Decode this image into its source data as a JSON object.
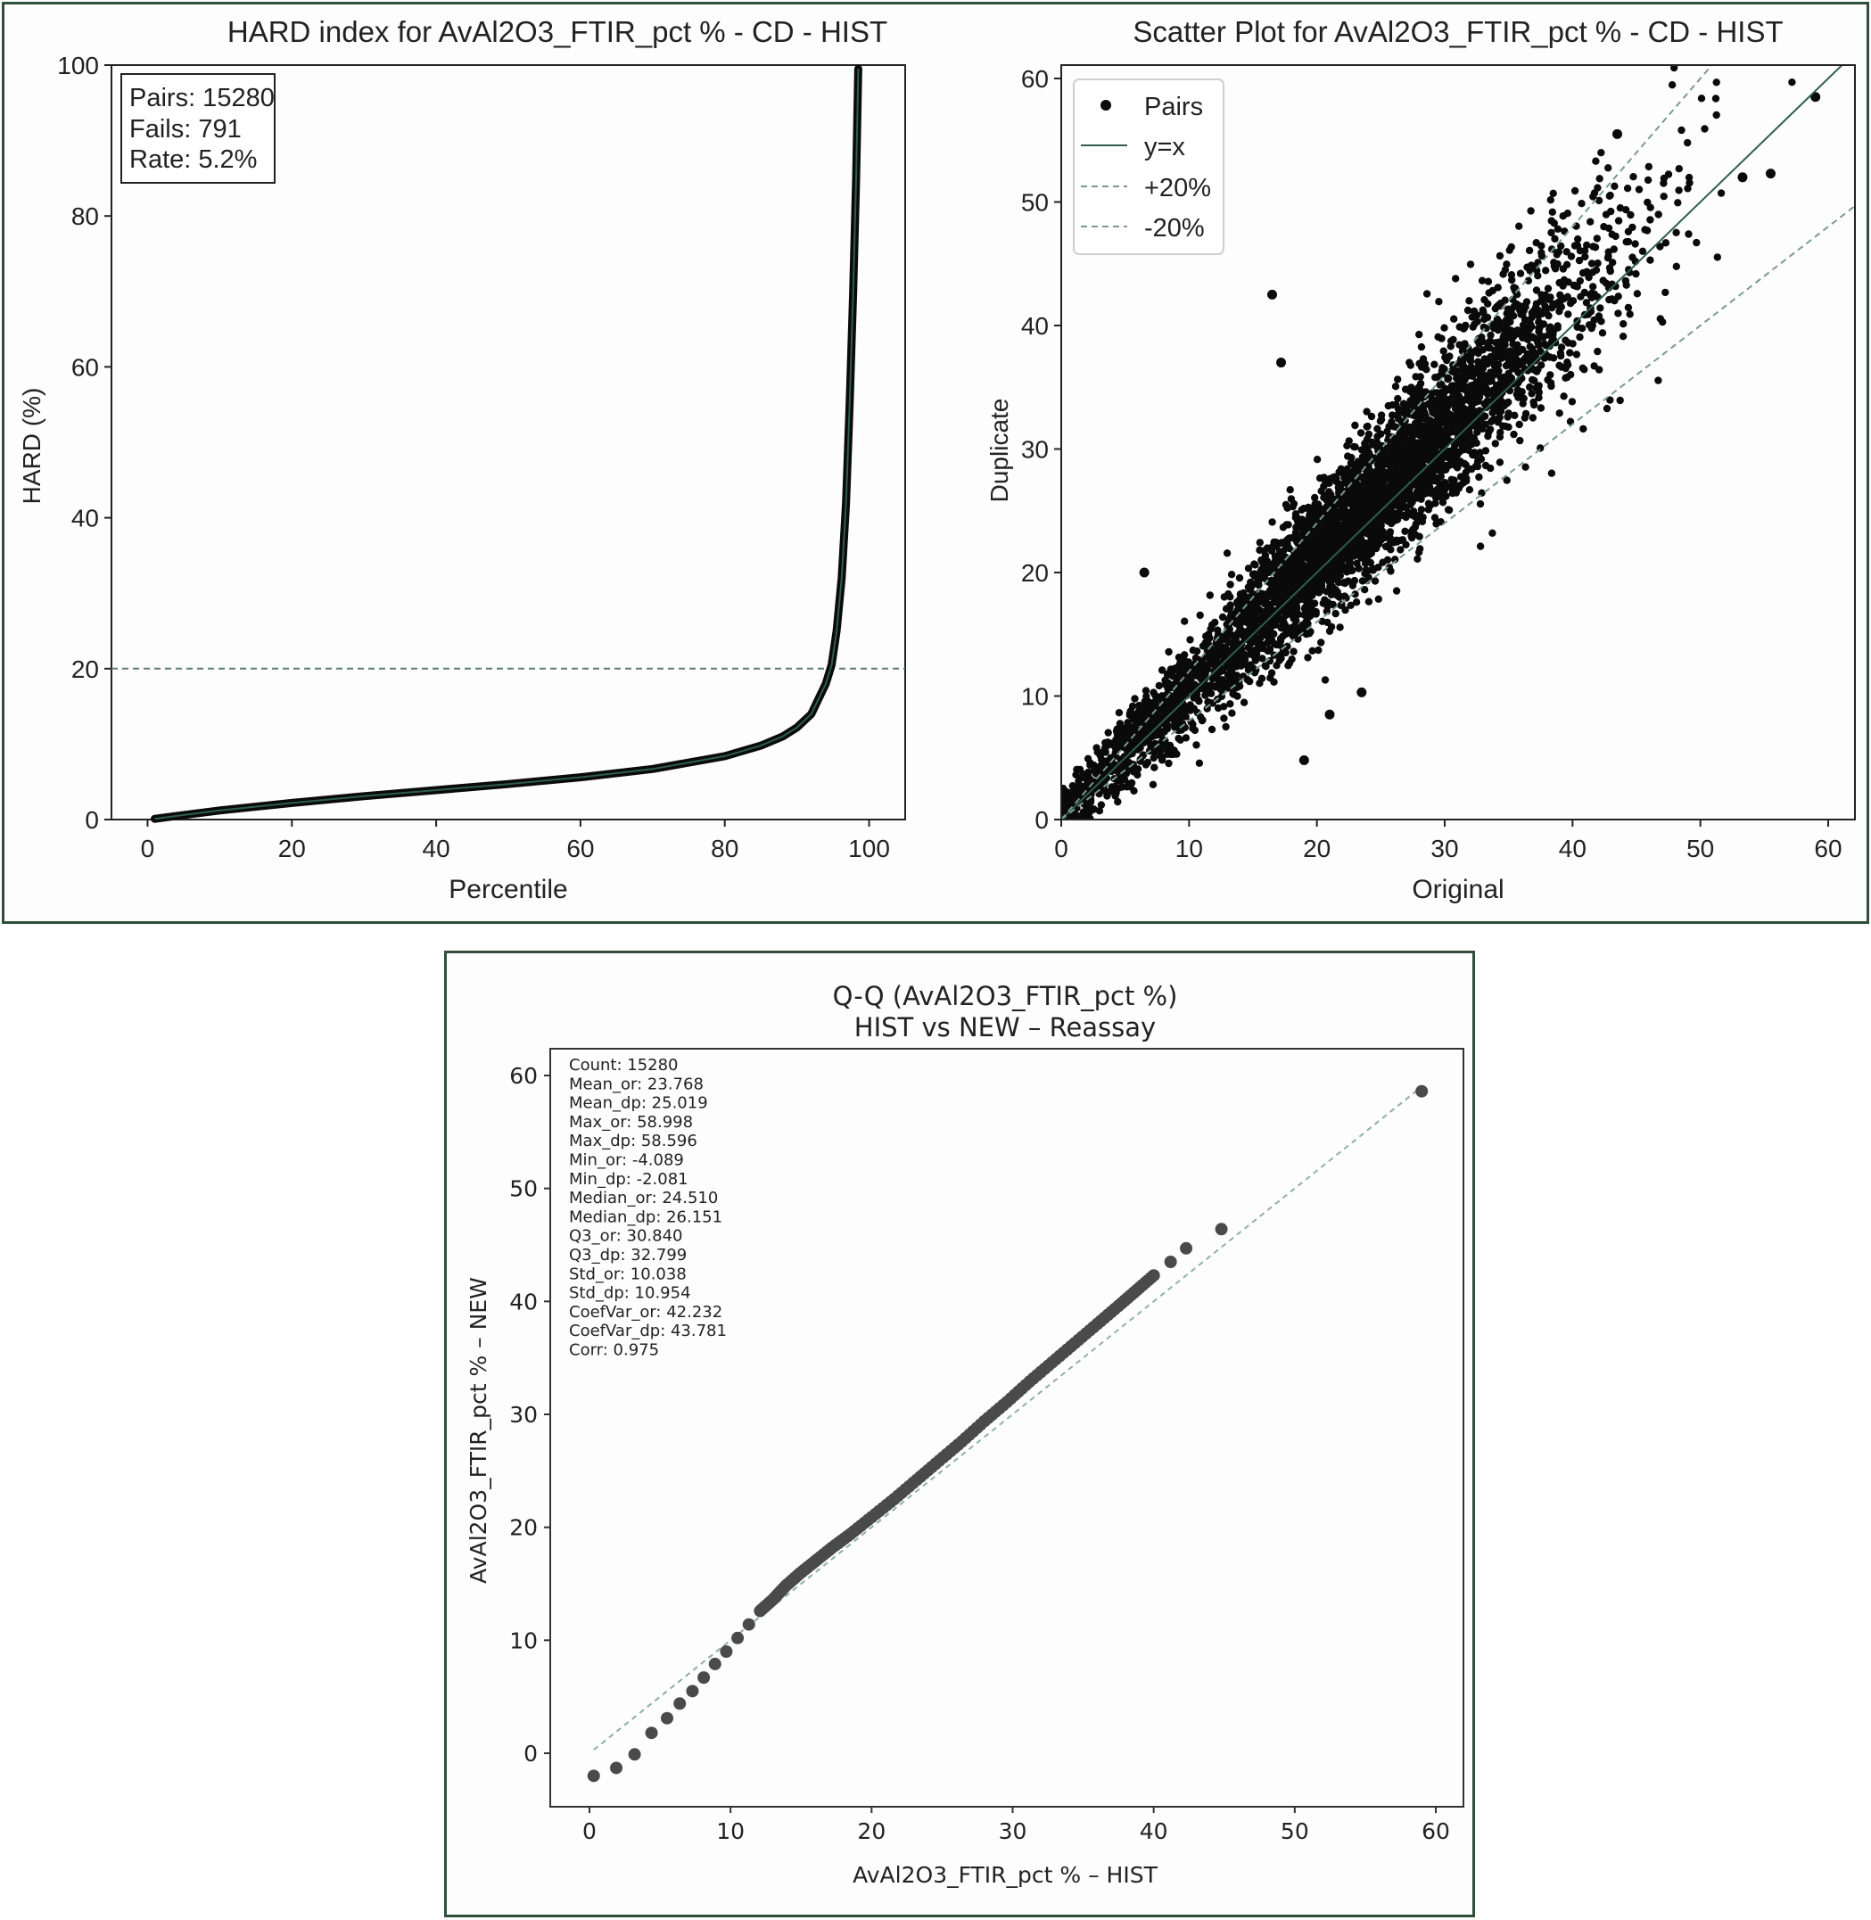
{
  "charts": {
    "hard": {
      "title": "HARD index for AvAl2O3_FTIR_pct % - CD - HIST",
      "xlabel": "Percentile",
      "ylabel": "HARD (%)",
      "box": [
        "Pairs: 15280",
        "Fails: 791",
        "Rate: 5.2%"
      ],
      "xticks": [
        0,
        20,
        40,
        60,
        80,
        100
      ],
      "yticks": [
        0,
        20,
        40,
        60,
        80,
        100
      ],
      "threshold": 20
    },
    "scatter": {
      "title": "Scatter Plot for AvAl2O3_FTIR_pct % - CD - HIST",
      "xlabel": "Original",
      "ylabel": "Duplicate",
      "legend": [
        "Pairs",
        "y=x",
        "+20%",
        "-20%"
      ],
      "xticks": [
        0,
        10,
        20,
        30,
        40,
        50,
        60
      ],
      "yticks": [
        0,
        10,
        20,
        30,
        40,
        50,
        60
      ]
    },
    "qq": {
      "title_line1": "Q-Q (AvAl2O3_FTIR_pct %)",
      "title_line2": "HIST vs NEW – Reassay",
      "xlabel": "AvAl2O3_FTIR_pct % – HIST",
      "ylabel": "AvAl2O3_FTIR_pct % – NEW",
      "stats": [
        "Count: 15280",
        "Mean_or: 23.768",
        "Mean_dp: 25.019",
        "Max_or: 58.998",
        "Max_dp: 58.596",
        "Min_or: -4.089",
        "Min_dp: -2.081",
        "Median_or: 24.510",
        "Median_dp: 26.151",
        "Q3_or: 30.840",
        "Q3_dp: 32.799",
        "Std_or: 10.038",
        "Std_dp: 10.954",
        "CoefVar_or: 42.232",
        "CoefVar_dp: 43.781",
        "Corr: 0.975"
      ],
      "xticks": [
        0,
        10,
        20,
        30,
        40,
        50,
        60
      ],
      "yticks": [
        0,
        10,
        20,
        30,
        40,
        50,
        60
      ]
    }
  },
  "colors": {
    "points": "#0a0a0a",
    "curve_line": "#2f5d4f",
    "dashed": "#7a9a8c",
    "qq_points": "#4a4a4a"
  },
  "chart_data": [
    {
      "type": "line",
      "title": "HARD index for AvAl2O3_FTIR_pct % - CD - HIST",
      "xlabel": "Percentile",
      "ylabel": "HARD (%)",
      "xlim": [
        -5,
        105
      ],
      "ylim": [
        0,
        100
      ],
      "x": [
        1,
        5,
        10,
        20,
        30,
        40,
        50,
        60,
        70,
        80,
        85,
        88,
        90,
        92,
        93,
        94,
        94.8,
        95.5,
        96.2,
        96.8,
        97.3,
        97.8,
        98.2,
        98.5
      ],
      "y": [
        0.1,
        0.6,
        1.2,
        2.2,
        3.1,
        3.9,
        4.7,
        5.6,
        6.7,
        8.4,
        9.8,
        11.0,
        12.2,
        14.0,
        16.0,
        18.0,
        20.5,
        25.0,
        32.0,
        42.0,
        55.0,
        70.0,
        85.0,
        99.5
      ],
      "threshold": 20,
      "annotation": [
        "Pairs: 15280",
        "Fails: 791",
        "Rate: 5.2%"
      ]
    },
    {
      "type": "scatter",
      "title": "Scatter Plot for AvAl2O3_FTIR_pct % - CD - HIST",
      "xlabel": "Original",
      "ylabel": "Duplicate",
      "xlim": [
        0,
        60
      ],
      "ylim": [
        0,
        60
      ],
      "series": [
        {
          "name": "Pairs",
          "trend_slope": 1.05,
          "trend_intercept": 0.3,
          "n": 15280
        },
        {
          "name": "y=x",
          "slope": 1.0
        },
        {
          "name": "+20%",
          "slope": 1.2
        },
        {
          "name": "-20%",
          "slope": 0.8
        }
      ],
      "outliers": [
        [
          16.5,
          42.5
        ],
        [
          17.2,
          37
        ],
        [
          6.5,
          20
        ],
        [
          23.5,
          10.3
        ],
        [
          19,
          4.8
        ],
        [
          21,
          8.5
        ],
        [
          59,
          58.5
        ],
        [
          55.5,
          52.3
        ],
        [
          53.3,
          52
        ],
        [
          43.5,
          55.5
        ]
      ],
      "legend_position": "upper left"
    },
    {
      "type": "scatter",
      "title": "Q-Q (AvAl2O3_FTIR_pct %) HIST vs NEW – Reassay",
      "xlabel": "AvAl2O3_FTIR_pct % – HIST",
      "ylabel": "AvAl2O3_FTIR_pct % – NEW",
      "xlim": [
        -2.5,
        62
      ],
      "ylim": [
        -4.5,
        65
      ],
      "quantiles_x": [
        0.3,
        1.9,
        3.2,
        4.4,
        5.5,
        6.4,
        7.3,
        8.1,
        8.9,
        9.7,
        10.5,
        11.3,
        12.1,
        13.0,
        13.9,
        14.9,
        16.0,
        17.2,
        18.5,
        20.0,
        21.6,
        23.2,
        24.8,
        26.4,
        28.0,
        29.6,
        31.2,
        32.8,
        34.4,
        36.0,
        37.5,
        38.8,
        40.0,
        41.2,
        42.3,
        44.8,
        59.0
      ],
      "quantiles_y": [
        -2.0,
        -1.3,
        -0.1,
        1.8,
        3.1,
        4.4,
        5.5,
        6.7,
        7.9,
        9.0,
        10.2,
        11.4,
        12.6,
        13.6,
        14.8,
        15.9,
        17.0,
        18.2,
        19.4,
        20.9,
        22.5,
        24.2,
        25.9,
        27.6,
        29.4,
        31.1,
        32.9,
        34.6,
        36.3,
        38.0,
        39.6,
        41.0,
        42.3,
        43.5,
        44.7,
        46.4,
        58.6
      ],
      "reference_line": "y=x"
    }
  ]
}
